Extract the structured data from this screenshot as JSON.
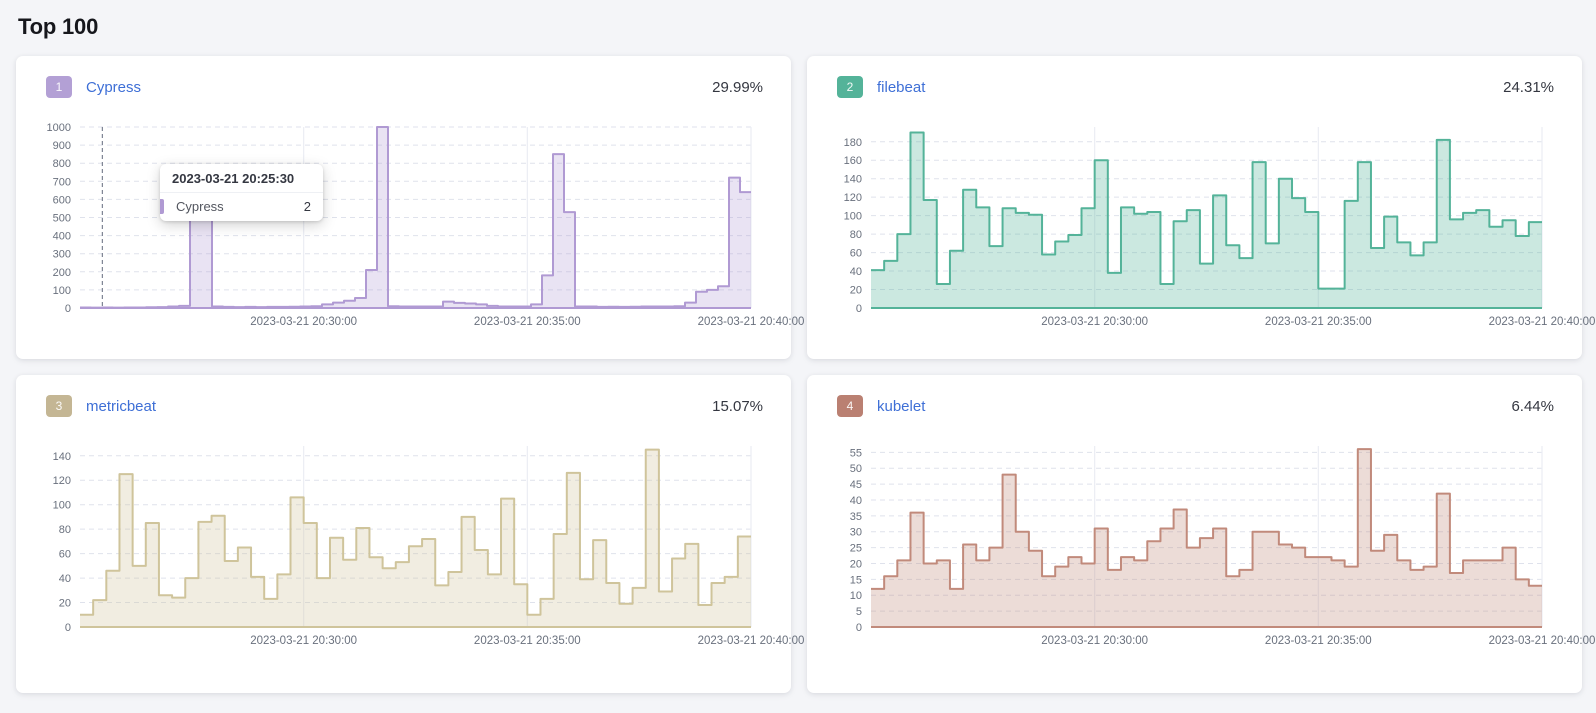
{
  "page": {
    "title": "Top 100",
    "background": "#f4f5f8"
  },
  "tooltip": {
    "title": "2023-03-21 20:25:30",
    "series_label": "Cypress",
    "value": "2",
    "swatch_color": "#b09ad3"
  },
  "chart_data": [
    {
      "type": "area",
      "rank": "1",
      "name": "Cypress",
      "percent": "29.99%",
      "badge_bg": "#b3a0d5",
      "stroke": "#b09ad3",
      "fill": "rgba(176,154,211,0.28)",
      "ymax": 1000,
      "yticks": [
        0,
        100,
        200,
        300,
        400,
        500,
        600,
        700,
        800,
        900,
        1000
      ],
      "xticks": [
        "2023-03-21 20:30:00",
        "2023-03-21 20:35:00",
        "2023-03-21 20:40:00"
      ],
      "has_cursor": true,
      "values": [
        3,
        2,
        3,
        2,
        3,
        3,
        4,
        5,
        8,
        12,
        500,
        500,
        8,
        6,
        5,
        6,
        5,
        6,
        6,
        7,
        8,
        10,
        20,
        30,
        40,
        55,
        210,
        1000,
        10,
        8,
        8,
        8,
        8,
        35,
        28,
        25,
        20,
        12,
        8,
        8,
        8,
        20,
        180,
        850,
        530,
        8,
        8,
        6,
        7,
        6,
        7,
        8,
        8,
        8,
        10,
        30,
        90,
        100,
        120,
        720,
        640
      ]
    },
    {
      "type": "area",
      "rank": "2",
      "name": "filebeat",
      "percent": "24.31%",
      "badge_bg": "#54b399",
      "stroke": "#54b399",
      "fill": "rgba(84,179,153,0.30)",
      "ymax": 196,
      "yticks": [
        0,
        20,
        40,
        60,
        80,
        100,
        120,
        140,
        160,
        180
      ],
      "xticks": [
        "2023-03-21 20:30:00",
        "2023-03-21 20:35:00",
        "2023-03-21 20:40:00"
      ],
      "has_cursor": false,
      "values": [
        41,
        51,
        80,
        190,
        117,
        26,
        62,
        128,
        109,
        67,
        108,
        103,
        101,
        58,
        72,
        79,
        108,
        160,
        38,
        109,
        102,
        104,
        26,
        94,
        106,
        48,
        122,
        68,
        54,
        158,
        70,
        140,
        119,
        104,
        21,
        21,
        116,
        158,
        65,
        99,
        71,
        57,
        71,
        182,
        96,
        103,
        106,
        88,
        95,
        78,
        93
      ]
    },
    {
      "type": "area",
      "rank": "3",
      "name": "metricbeat",
      "percent": "15.07%",
      "badge_bg": "#c4b694",
      "stroke": "#cfc49b",
      "fill": "rgba(207,196,155,0.30)",
      "ymax": 148,
      "yticks": [
        0,
        20,
        40,
        60,
        80,
        100,
        120,
        140
      ],
      "xticks": [
        "2023-03-21 20:30:00",
        "2023-03-21 20:35:00",
        "2023-03-21 20:40:00"
      ],
      "has_cursor": false,
      "values": [
        10,
        22,
        46,
        125,
        50,
        85,
        26,
        24,
        40,
        86,
        91,
        54,
        65,
        41,
        23,
        43,
        106,
        85,
        40,
        73,
        55,
        81,
        57,
        48,
        53,
        66,
        72,
        34,
        45,
        90,
        63,
        43,
        105,
        35,
        10,
        23,
        76,
        126,
        39,
        71,
        36,
        19,
        32,
        145,
        29,
        56,
        68,
        18,
        36,
        41,
        74
      ]
    },
    {
      "type": "area",
      "rank": "4",
      "name": "kubelet",
      "percent": "6.44%",
      "badge_bg": "#ba8072",
      "stroke": "#c18a7b",
      "fill": "rgba(193,138,123,0.30)",
      "ymax": 57,
      "yticks": [
        0,
        5,
        10,
        15,
        20,
        25,
        30,
        35,
        40,
        45,
        50,
        55
      ],
      "xticks": [
        "2023-03-21 20:30:00",
        "2023-03-21 20:35:00",
        "2023-03-21 20:40:00"
      ],
      "has_cursor": false,
      "values": [
        12,
        16,
        21,
        36,
        20,
        21,
        12,
        26,
        21,
        25,
        48,
        30,
        24,
        16,
        19,
        22,
        20,
        31,
        18,
        22,
        21,
        27,
        31,
        37,
        25,
        28,
        31,
        16,
        18,
        30,
        30,
        26,
        25,
        22,
        22,
        21,
        19,
        56,
        24,
        29,
        21,
        18,
        19,
        42,
        17,
        21,
        21,
        21,
        25,
        15,
        13
      ]
    }
  ]
}
